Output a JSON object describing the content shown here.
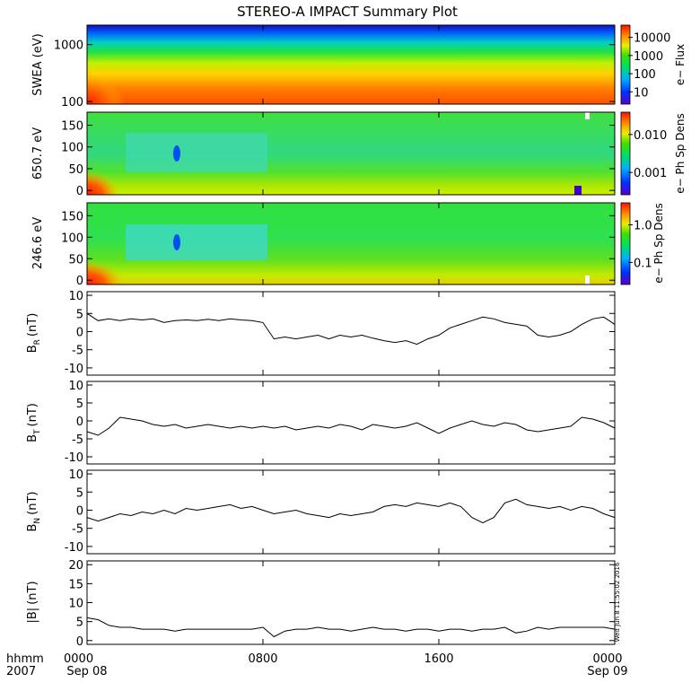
{
  "title": "STEREO-A IMPACT Summary Plot",
  "footer": {
    "hhmm": "hhmm",
    "year": "2007",
    "date_start": "Sep 08",
    "date_end": "Sep 09"
  },
  "timestamp": "Wed Jun  8 11:55:02 2016",
  "colors": {
    "frame": "#000000",
    "trace": "#000000"
  },
  "chart_data": [
    {
      "type": "heatmap",
      "ylabel": "SWEA (eV)",
      "yscale": "log",
      "ylim": [
        90,
        2200
      ],
      "yticks": [
        "100",
        "1000"
      ],
      "colorbar": {
        "label": "e− Flux",
        "scale": "log",
        "ticks": [
          "10",
          "100",
          "1000",
          "10000"
        ]
      }
    },
    {
      "type": "heatmap",
      "ylabel": "650.7 eV",
      "ylim": [
        -10,
        180
      ],
      "yticks": [
        "0",
        "50",
        "100",
        "150"
      ],
      "colorbar": {
        "label": "e− Ph Sp Dens",
        "scale": "log",
        "ticks": [
          "0.001",
          "0.010"
        ]
      }
    },
    {
      "type": "heatmap",
      "ylabel": "246.6 eV",
      "ylim": [
        -10,
        180
      ],
      "yticks": [
        "0",
        "50",
        "100",
        "150"
      ],
      "colorbar": {
        "label": "e− Ph Sp Dens",
        "scale": "log",
        "ticks": [
          "0.1",
          "1.0"
        ]
      }
    },
    {
      "type": "line",
      "ylabel": "B",
      "ysub": "R",
      "yunit": "(nT)",
      "ylim": [
        -12,
        11
      ],
      "yticks": [
        "-10",
        "-5",
        "0",
        "5",
        "10"
      ],
      "x_hours": [
        0,
        0.5,
        1,
        1.5,
        2,
        2.5,
        3,
        3.5,
        4,
        4.5,
        5,
        5.5,
        6,
        6.5,
        7,
        7.5,
        8,
        8.5,
        9,
        9.5,
        10,
        10.5,
        11,
        11.5,
        12,
        12.5,
        13,
        13.5,
        14,
        14.5,
        15,
        15.5,
        16,
        16.5,
        17,
        17.5,
        18,
        18.5,
        19,
        19.5,
        20,
        20.5,
        21,
        21.5,
        22,
        22.5,
        23,
        23.5,
        24
      ],
      "values": [
        5,
        3,
        3.5,
        3,
        3.5,
        3.2,
        3.5,
        2.5,
        3,
        3.2,
        3,
        3.4,
        3,
        3.5,
        3.2,
        3,
        2.5,
        -2,
        -1.5,
        -2,
        -1.5,
        -1,
        -2,
        -1,
        -1.5,
        -1,
        -1.8,
        -2.5,
        -3,
        -2.5,
        -3.5,
        -2,
        -1,
        1,
        2,
        3,
        4,
        3.5,
        2.5,
        2,
        1.5,
        -1,
        -1.5,
        -1,
        0,
        2,
        3.5,
        4,
        2
      ]
    },
    {
      "type": "line",
      "ylabel": "B",
      "ysub": "T",
      "yunit": "(nT)",
      "ylim": [
        -12,
        11
      ],
      "yticks": [
        "-10",
        "-5",
        "0",
        "5",
        "10"
      ],
      "x_hours": [
        0,
        0.5,
        1,
        1.5,
        2,
        2.5,
        3,
        3.5,
        4,
        4.5,
        5,
        5.5,
        6,
        6.5,
        7,
        7.5,
        8,
        8.5,
        9,
        9.5,
        10,
        10.5,
        11,
        11.5,
        12,
        12.5,
        13,
        13.5,
        14,
        14.5,
        15,
        15.5,
        16,
        16.5,
        17,
        17.5,
        18,
        18.5,
        19,
        19.5,
        20,
        20.5,
        21,
        21.5,
        22,
        22.5,
        23,
        23.5,
        24
      ],
      "values": [
        -3,
        -4,
        -2,
        1,
        0.5,
        0,
        -1,
        -1.5,
        -1,
        -2,
        -1.5,
        -1,
        -1.5,
        -2,
        -1.5,
        -2,
        -1.5,
        -2,
        -1.5,
        -2.5,
        -2,
        -1.5,
        -2,
        -1,
        -1.5,
        -2.5,
        -1,
        -1.5,
        -2,
        -1.5,
        -0.5,
        -2,
        -3.5,
        -2,
        -1,
        0,
        -1,
        -1.5,
        -0.5,
        -1,
        -2.5,
        -3,
        -2.5,
        -2,
        -1.5,
        1,
        0.5,
        -0.5,
        -2
      ]
    },
    {
      "type": "line",
      "ylabel": "B",
      "ysub": "N",
      "yunit": "(nT)",
      "ylim": [
        -12,
        11
      ],
      "yticks": [
        "-10",
        "-5",
        "0",
        "5",
        "10"
      ],
      "x_hours": [
        0,
        0.5,
        1,
        1.5,
        2,
        2.5,
        3,
        3.5,
        4,
        4.5,
        5,
        5.5,
        6,
        6.5,
        7,
        7.5,
        8,
        8.5,
        9,
        9.5,
        10,
        10.5,
        11,
        11.5,
        12,
        12.5,
        13,
        13.5,
        14,
        14.5,
        15,
        15.5,
        16,
        16.5,
        17,
        17.5,
        18,
        18.5,
        19,
        19.5,
        20,
        20.5,
        21,
        21.5,
        22,
        22.5,
        23,
        23.5,
        24
      ],
      "values": [
        -2,
        -3,
        -2,
        -1,
        -1.5,
        -0.5,
        -1,
        0,
        -1,
        0.5,
        0,
        0.5,
        1,
        1.5,
        0.5,
        1,
        0,
        -1,
        -0.5,
        0,
        -1,
        -1.5,
        -2,
        -1,
        -1.5,
        -1,
        -0.5,
        1,
        1.5,
        1,
        2,
        1.5,
        1,
        2,
        1,
        -2,
        -3.5,
        -2,
        2,
        3,
        1.5,
        1,
        0.5,
        1,
        0,
        1,
        0.5,
        -1,
        -2
      ]
    },
    {
      "type": "line",
      "ylabel": "|B|",
      "yunit": "(nT)",
      "ylim": [
        -1,
        21
      ],
      "yticks": [
        "0",
        "5",
        "10",
        "15",
        "20"
      ],
      "x_hours": [
        0,
        0.5,
        1,
        1.5,
        2,
        2.5,
        3,
        3.5,
        4,
        4.5,
        5,
        5.5,
        6,
        6.5,
        7,
        7.5,
        8,
        8.5,
        9,
        9.5,
        10,
        10.5,
        11,
        11.5,
        12,
        12.5,
        13,
        13.5,
        14,
        14.5,
        15,
        15.5,
        16,
        16.5,
        17,
        17.5,
        18,
        18.5,
        19,
        19.5,
        20,
        20.5,
        21,
        21.5,
        22,
        22.5,
        23,
        23.5,
        24
      ],
      "values": [
        6,
        5.5,
        4,
        3.5,
        3.5,
        3,
        3,
        3,
        2.5,
        3,
        3,
        3,
        3,
        3,
        3,
        3,
        3.5,
        1,
        2.5,
        3,
        3,
        3.5,
        3,
        3,
        2.5,
        3,
        3.5,
        3,
        3,
        2.5,
        3,
        3,
        2.5,
        3,
        3,
        2.5,
        3,
        3,
        3.5,
        2,
        2.5,
        3.5,
        3,
        3.5,
        3.5,
        3.5,
        3.5,
        3.5,
        3
      ]
    }
  ],
  "x_axis": {
    "ticks": [
      "0000",
      "0800",
      "1600",
      "0000"
    ],
    "tick_hours": [
      0,
      8,
      16,
      24
    ]
  }
}
